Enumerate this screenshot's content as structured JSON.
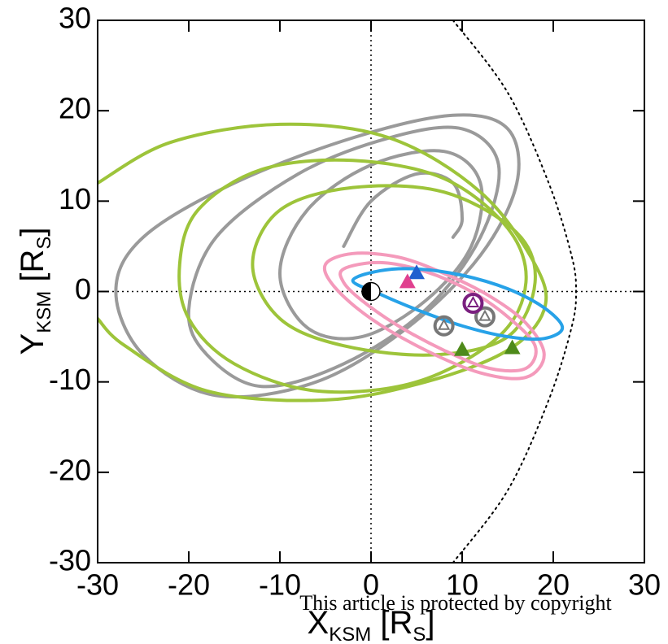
{
  "chart_data": {
    "type": "orbit",
    "xlim": [
      -30,
      30
    ],
    "ylim": [
      -30,
      30
    ],
    "xticks": [
      -30,
      -20,
      -10,
      0,
      10,
      20,
      30
    ],
    "yticks": [
      -30,
      -20,
      -10,
      0,
      10,
      20,
      30
    ],
    "xlabel": {
      "main": "X",
      "sub": "KSM",
      "unit": "[R",
      "unit_sub": "S",
      "close": "]"
    },
    "ylabel": {
      "main": "Y",
      "sub": "KSM",
      "unit": "[R",
      "unit_sub": "S",
      "close": "]"
    },
    "watermark": "This article is protected by copyright",
    "series": [
      {
        "color": "#9a9a9a",
        "closed": true,
        "x": [
          -28,
          -25,
          -15,
          -2,
          9,
          15,
          16,
          12,
          4,
          -6,
          -17,
          -25
        ],
        "y": [
          0,
          6,
          12,
          17,
          19.5,
          18,
          12,
          4,
          -4,
          -10,
          -11.5,
          -7
        ]
      },
      {
        "color": "#9a9a9a",
        "closed": true,
        "x": [
          -20,
          -17,
          -8,
          2,
          10,
          14,
          12,
          6,
          -3,
          -12,
          -18
        ],
        "y": [
          -2,
          6,
          13,
          17,
          18,
          14,
          6,
          -2,
          -8,
          -10.5,
          -7
        ]
      },
      {
        "color": "#9a9a9a",
        "closed": true,
        "x": [
          -10,
          -7,
          0,
          8,
          12,
          11,
          6,
          -1,
          -7
        ],
        "y": [
          2,
          9,
          14,
          15.5,
          12,
          5,
          -1,
          -5,
          -4
        ]
      },
      {
        "color": "#9a9a9a",
        "closed": false,
        "x": [
          -3,
          0,
          5,
          9,
          10,
          9
        ],
        "y": [
          5,
          10,
          13,
          12,
          8,
          6
        ]
      },
      {
        "color": "#9dc43a",
        "closed": false,
        "x": [
          -30,
          -22,
          -10,
          2,
          12,
          18,
          19,
          15,
          6,
          -5,
          -18,
          -27,
          -30
        ],
        "y": [
          12,
          16.5,
          18.5,
          17,
          11,
          3,
          -2,
          -6.5,
          -10,
          -12,
          -11,
          -6,
          -3
        ]
      },
      {
        "color": "#9dc43a",
        "closed": true,
        "x": [
          -21,
          -19,
          -12,
          -2,
          8,
          15,
          17,
          14,
          5,
          -6,
          -15,
          -20
        ],
        "y": [
          3,
          9,
          13.5,
          14.5,
          12.5,
          7,
          1,
          -5,
          -10,
          -11,
          -8,
          -3
        ]
      },
      {
        "color": "#9dc43a",
        "closed": true,
        "x": [
          -13,
          -10,
          -2,
          8,
          16,
          18,
          15,
          7,
          -3,
          -10
        ],
        "y": [
          3,
          9,
          11.5,
          11,
          6.5,
          1,
          -5,
          -7,
          -6,
          -3
        ]
      },
      {
        "color": "#f49abb",
        "closed": true,
        "x": [
          -5,
          -2,
          3,
          8,
          13,
          17,
          19,
          17,
          12,
          6,
          0,
          -4
        ],
        "y": [
          3,
          4.2,
          3.8,
          2,
          -0.5,
          -3.5,
          -7,
          -9.5,
          -9,
          -6.5,
          -3,
          0.5
        ]
      },
      {
        "color": "#f49abb",
        "closed": true,
        "x": [
          -3,
          1,
          6,
          11,
          15,
          18,
          17,
          13,
          8,
          3,
          -1,
          -3
        ],
        "y": [
          2.5,
          3.2,
          2.2,
          0,
          -2.8,
          -6,
          -8.5,
          -8.5,
          -6.5,
          -3.8,
          -1,
          1
        ]
      },
      {
        "color": "#27a2e8",
        "closed": true,
        "x": [
          -2,
          1,
          5,
          10,
          15,
          19,
          21,
          19,
          15,
          10,
          5,
          1
        ],
        "y": [
          1.2,
          2.3,
          2.5,
          1.8,
          0.3,
          -1.8,
          -4,
          -5.2,
          -5,
          -3.8,
          -2,
          -0.3
        ]
      },
      {
        "color": "#000000",
        "closed": false,
        "style": "dotted",
        "x": [
          9,
          15,
          19.5,
          22,
          22.5,
          22,
          19.5,
          15,
          9
        ],
        "y": [
          30,
          22,
          12,
          4,
          0,
          -4,
          -12,
          -22,
          -30
        ]
      }
    ],
    "markers": {
      "x": [
        0,
        5,
        4,
        10,
        15.5,
        8,
        12.5,
        11.2
      ],
      "y": [
        0,
        2,
        1,
        -6.5,
        -6.3,
        -3.8,
        -2.8,
        -1.3
      ],
      "colors": [
        "#000000",
        "#1f5fcf",
        "#e0408f",
        "#4e8a1a",
        "#4e8a1a",
        "#777777",
        "#777777",
        "#7a1f7f"
      ],
      "shapes": [
        "planet",
        "triangle",
        "triangle",
        "triangle",
        "triangle",
        "ring",
        "ring",
        "ring"
      ]
    }
  }
}
